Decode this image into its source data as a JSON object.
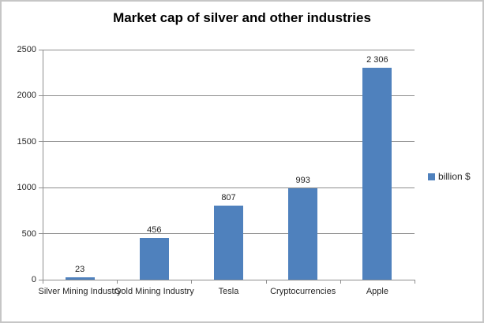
{
  "chart_data": {
    "type": "bar",
    "title": "Market cap of silver and other industries",
    "categories": [
      "Silver Mining Industry",
      "Gold Mining Industry",
      "Tesla",
      "Cryptocurrencies",
      "Apple"
    ],
    "values": [
      23,
      456,
      807,
      993,
      2306
    ],
    "value_labels": [
      "23",
      "456",
      "807",
      "993",
      "2 306"
    ],
    "xlabel": "",
    "ylabel": "",
    "ylim": [
      0,
      2500
    ],
    "yticks": [
      0,
      500,
      1000,
      1500,
      2000,
      2500
    ],
    "grid": true,
    "legend": [
      "billion $"
    ],
    "legend_position": "right",
    "bar_color": "#4f81bd",
    "grid_color": "#8e8e8e"
  }
}
